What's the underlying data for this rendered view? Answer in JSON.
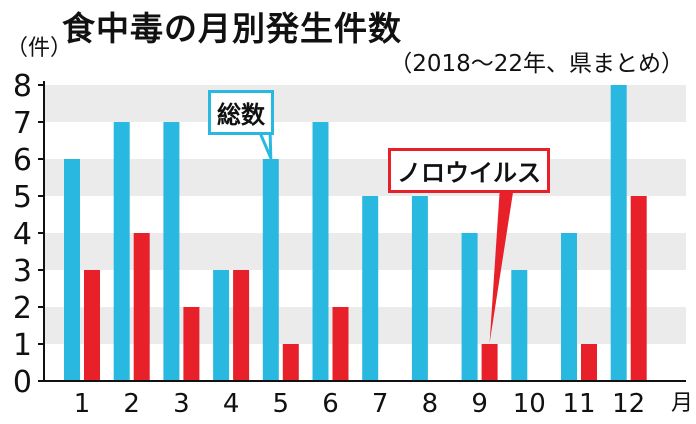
{
  "chart_data": {
    "type": "bar",
    "title": "食中毒の月別発生件数",
    "subtitle": "（2018～22年、県まとめ）",
    "ylabel": "（件）",
    "xunit": "月",
    "categories": [
      "1",
      "2",
      "3",
      "4",
      "5",
      "6",
      "7",
      "8",
      "9",
      "10",
      "11",
      "12"
    ],
    "ylim": [
      0,
      8
    ],
    "yticks": [
      0,
      1,
      2,
      3,
      4,
      5,
      6,
      7,
      8
    ],
    "grid": "alternating horizontal bands",
    "series": [
      {
        "name": "総数",
        "values": [
          6,
          7,
          7,
          3,
          6,
          7,
          5,
          5,
          4,
          3,
          4,
          8
        ],
        "color": "#29b9e0"
      },
      {
        "name": "ノロウイルス",
        "values": [
          3,
          4,
          2,
          3,
          1,
          2,
          0,
          0,
          1,
          0,
          1,
          5
        ],
        "color": "#e8202a"
      }
    ]
  }
}
